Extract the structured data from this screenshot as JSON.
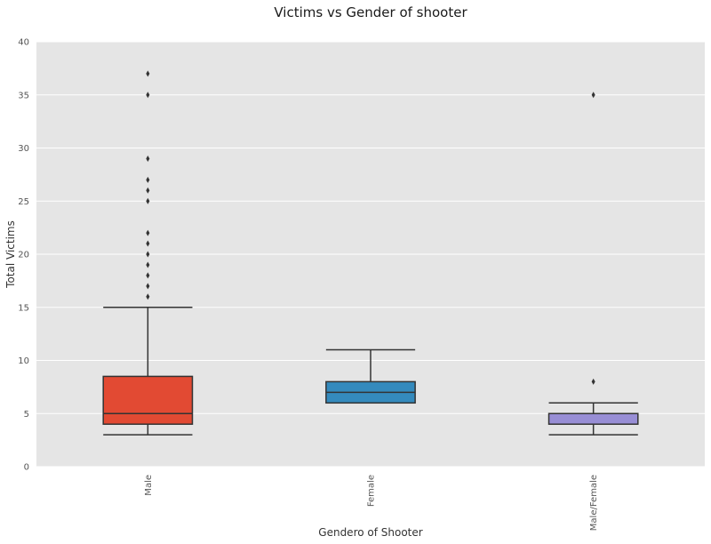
{
  "chart_data": {
    "type": "box",
    "title": "Victims vs Gender of shooter",
    "xlabel": "Gendero of Shooter",
    "ylabel": "Total Victims",
    "ylim": [
      0,
      40
    ],
    "yticks": [
      0,
      5,
      10,
      15,
      20,
      25,
      30,
      35,
      40
    ],
    "grid": true,
    "background": "#e5e5e5",
    "categories": [
      "Male",
      "Female",
      "Male/Female"
    ],
    "boxes": [
      {
        "category": "Male",
        "color": "#e24a33",
        "whisker_low": 3,
        "q1": 4,
        "median": 5,
        "q3": 8.5,
        "whisker_high": 15,
        "outliers": [
          16,
          17,
          18,
          19,
          20,
          21,
          22,
          25,
          26,
          27,
          29,
          35,
          37
        ]
      },
      {
        "category": "Female",
        "color": "#348abd",
        "whisker_low": 6,
        "q1": 6,
        "median": 7,
        "q3": 8,
        "whisker_high": 11,
        "outliers": []
      },
      {
        "category": "Male/Female",
        "color": "#988ed5",
        "whisker_low": 3,
        "q1": 4,
        "median": 5,
        "q3": 5,
        "whisker_high": 6,
        "outliers": [
          8,
          35
        ]
      }
    ]
  }
}
